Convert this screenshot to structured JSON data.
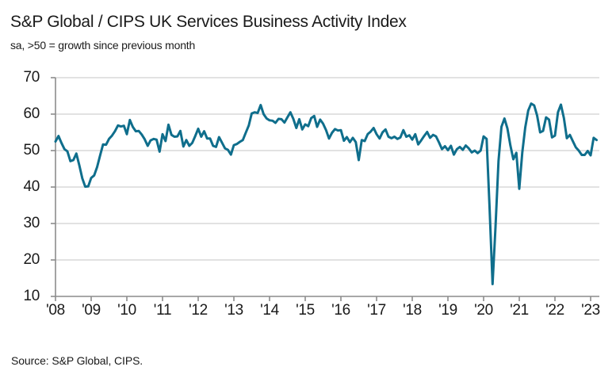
{
  "chart_data": {
    "type": "line",
    "title": "S&P Global / CIPS UK Services Business Activity Index",
    "subtitle": "sa, >50 = growth since previous month",
    "source": "Source: S&P Global, CIPS.",
    "x_start": "2008-01",
    "x_end": "2023-03",
    "frequency": "monthly",
    "ylim": [
      10,
      70
    ],
    "yticks": [
      70,
      60,
      50,
      40,
      30,
      20,
      10
    ],
    "xticks": [
      "'08",
      "'09",
      "'10",
      "'11",
      "'12",
      "'13",
      "'14",
      "'15",
      "'16",
      "'17",
      "'18",
      "'19",
      "'20",
      "'21",
      "'22",
      "'23"
    ],
    "grid": "horizontal",
    "legend_position": "none",
    "colors": {
      "line": "#0F6E8C",
      "grid": "#D9D9D9",
      "axis": "#8C8C8C",
      "text": "#1A1A1A"
    },
    "series": [
      {
        "name": "UK Services Business Activity Index (sa)",
        "color": "#0F6E8C",
        "values": [
          52.5,
          54.0,
          52.1,
          50.4,
          49.8,
          47.1,
          47.4,
          49.2,
          46.0,
          42.4,
          40.1,
          40.2,
          42.5,
          43.2,
          45.5,
          48.7,
          51.7,
          51.6,
          53.2,
          54.1,
          55.3,
          56.9,
          56.6,
          56.8,
          54.5,
          58.4,
          56.5,
          55.3,
          55.4,
          54.4,
          53.1,
          51.3,
          52.8,
          53.2,
          53.0,
          49.7,
          54.5,
          52.6,
          57.1,
          54.3,
          53.8,
          53.9,
          55.4,
          51.1,
          52.9,
          51.3,
          52.1,
          54.0,
          56.0,
          53.8,
          55.3,
          53.3,
          53.3,
          51.3,
          51.0,
          53.7,
          52.2,
          50.6,
          50.2,
          48.9,
          51.5,
          51.8,
          52.4,
          52.9,
          54.9,
          56.9,
          60.2,
          60.5,
          60.3,
          62.5,
          60.0,
          58.8,
          58.3,
          58.2,
          57.6,
          58.7,
          58.6,
          57.7,
          59.1,
          60.5,
          58.7,
          56.2,
          58.6,
          55.8,
          57.2,
          56.7,
          58.9,
          59.5,
          56.5,
          58.5,
          57.4,
          55.6,
          53.3,
          54.9,
          55.9,
          55.5,
          55.6,
          52.7,
          53.7,
          52.3,
          53.5,
          52.3,
          47.4,
          52.9,
          52.6,
          54.5,
          55.2,
          56.2,
          54.5,
          53.3,
          55.0,
          55.8,
          53.8,
          53.4,
          53.8,
          53.2,
          53.6,
          55.6,
          53.8,
          54.2,
          53.0,
          54.5,
          51.7,
          52.8,
          54.0,
          55.1,
          53.5,
          54.3,
          53.9,
          52.2,
          50.4,
          51.2,
          50.1,
          51.3,
          48.9,
          50.4,
          51.0,
          50.2,
          51.4,
          50.6,
          49.5,
          50.0,
          49.3,
          50.0,
          53.9,
          53.2,
          34.5,
          13.4,
          29.0,
          47.1,
          56.5,
          58.8,
          56.1,
          51.4,
          47.6,
          49.4,
          39.5,
          49.5,
          56.3,
          61.0,
          62.9,
          62.4,
          59.6,
          55.0,
          55.4,
          59.1,
          58.5,
          53.6,
          54.1,
          60.5,
          62.6,
          58.9,
          53.4,
          54.3,
          52.6,
          50.9,
          50.0,
          48.8,
          48.8,
          49.9,
          48.7,
          53.5,
          52.9
        ]
      }
    ]
  }
}
